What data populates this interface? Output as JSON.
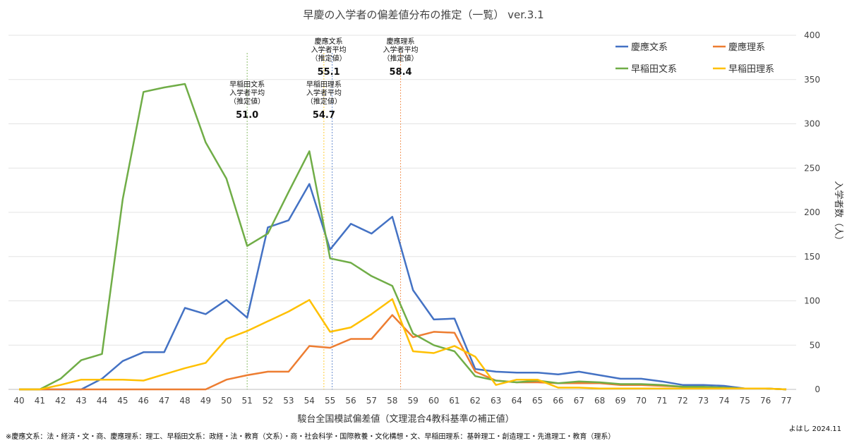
{
  "chart_data": {
    "type": "line",
    "title": "早慶の入学者の偏差値分布の推定（一覧） ver.3.1",
    "xlabel": "駿台全国模試偏差値（文理混合4教科基準の補正値）",
    "ylabel": "入学者数（人）",
    "x": [
      40,
      41,
      42,
      43,
      44,
      45,
      46,
      47,
      48,
      49,
      50,
      51,
      52,
      53,
      54,
      55,
      56,
      57,
      58,
      59,
      60,
      61,
      62,
      63,
      64,
      65,
      66,
      67,
      68,
      69,
      70,
      71,
      72,
      73,
      74,
      75,
      76,
      77
    ],
    "xticks": [
      "40",
      "41",
      "42",
      "43",
      "44",
      "45",
      "46",
      "47",
      "48",
      "49",
      "50",
      "51",
      "52",
      "53",
      "54",
      "55",
      "56",
      "57",
      "58",
      "59",
      "60",
      "61",
      "62",
      "63",
      "64",
      "65",
      "66",
      "67",
      "68",
      "69",
      "70",
      "71",
      "72",
      "73",
      "74",
      "75",
      "76",
      "77"
    ],
    "ylim": [
      0,
      400
    ],
    "yticks": [
      "0",
      "50",
      "100",
      "150",
      "200",
      "250",
      "300",
      "350",
      "400"
    ],
    "grid": true,
    "legend_position": "top-right",
    "series": [
      {
        "name": "慶應文系",
        "color": "#4472C4",
        "values": [
          0,
          0,
          0,
          0,
          12,
          32,
          42,
          42,
          92,
          85,
          101,
          81,
          183,
          191,
          232,
          158,
          187,
          176,
          195,
          112,
          79,
          80,
          23,
          20,
          19,
          19,
          17,
          20,
          16,
          12,
          12,
          9,
          5,
          5,
          4,
          1,
          1,
          0
        ]
      },
      {
        "name": "慶應理系",
        "color": "#ED7D31",
        "values": [
          0,
          0,
          0,
          0,
          0,
          0,
          0,
          0,
          0,
          0,
          11,
          16,
          20,
          20,
          49,
          47,
          57,
          57,
          84,
          59,
          65,
          64,
          20,
          10,
          8,
          8,
          7,
          7,
          7,
          5,
          5,
          4,
          3,
          2,
          2,
          1,
          1,
          0
        ]
      },
      {
        "name": "早稲田文系",
        "color": "#70AD47",
        "values": [
          0,
          0,
          12,
          33,
          40,
          215,
          336,
          341,
          345,
          279,
          238,
          162,
          176,
          223,
          269,
          148,
          143,
          128,
          117,
          63,
          50,
          43,
          15,
          10,
          8,
          10,
          7,
          9,
          8,
          6,
          6,
          5,
          3,
          3,
          2,
          1,
          1,
          0
        ]
      },
      {
        "name": "早稲田理系",
        "color": "#FFC000",
        "values": [
          0,
          0,
          5,
          11,
          11,
          11,
          10,
          17,
          24,
          30,
          57,
          66,
          77,
          88,
          101,
          65,
          70,
          85,
          102,
          43,
          41,
          49,
          37,
          5,
          11,
          11,
          2,
          2,
          1,
          1,
          1,
          1,
          1,
          1,
          1,
          1,
          1,
          0
        ]
      }
    ],
    "annotations": [
      {
        "label": [
          "早稲田文系",
          "入学者平均",
          "（推定値）"
        ],
        "value": "51.0",
        "x": 51.0,
        "color": "#70AD47"
      },
      {
        "label": [
          "早稲田理系",
          "入学者平均",
          "（推定値）"
        ],
        "value": "54.7",
        "x": 54.7,
        "color": "#FFC000"
      },
      {
        "label": [
          "慶應文系",
          "入学者平均",
          "（推定値）"
        ],
        "value": "55.1",
        "x": 55.1,
        "color": "#4472C4"
      },
      {
        "label": [
          "慶應理系",
          "入学者平均",
          "（推定値）"
        ],
        "value": "58.4",
        "x": 58.4,
        "color": "#ED7D31"
      }
    ]
  },
  "footnote": "※慶應文系：法・経済・文・商、慶應理系：理工、早稲田文系：政経・法・教育（文系）・商・社会科学・国際教養・文化構想・文、早稲田理系：基幹理工・創造理工・先進理工・教育（理系）",
  "credit": "よはし 2024.11"
}
